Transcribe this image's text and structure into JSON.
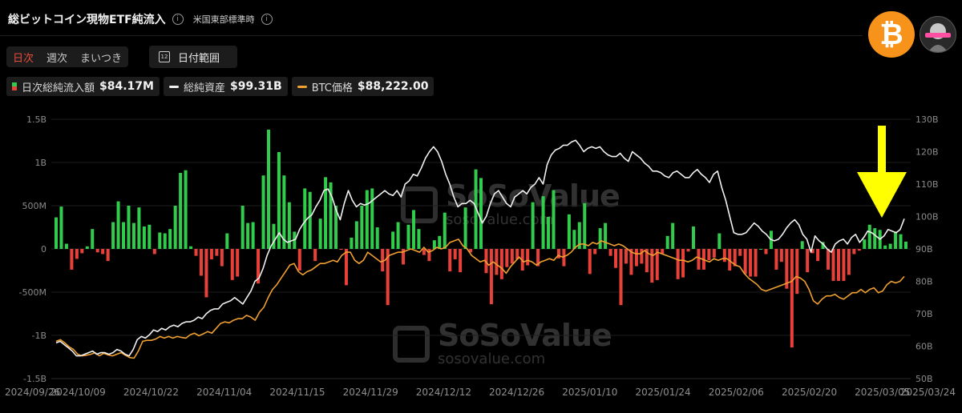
{
  "header": {
    "title": "総ビットコイン現物ETF純流入",
    "timezone": "米国東部標準時"
  },
  "period_tabs": [
    {
      "label": "日次",
      "active": true
    },
    {
      "label": "週次",
      "active": false
    },
    {
      "label": "まいつき",
      "active": false
    }
  ],
  "date_range": {
    "label": "日付範囲",
    "icon": "calendar-icon",
    "icon_day": "12"
  },
  "legend": [
    {
      "label": "日次総純流入額",
      "value": "$84.17M"
    },
    {
      "label": "総純資産",
      "value": "$99.31B"
    },
    {
      "label": "BTC価格",
      "value": "$88,222.00"
    }
  ],
  "watermark": {
    "brand": "SoSoValue",
    "site": "sosovalue.com"
  },
  "colors": {
    "inflow": "#32cc4c",
    "outflow": "#e8413a",
    "net_assets_line": "#f0f0f0",
    "btc_price_line": "#f0a030",
    "arrow": "#ffff00",
    "btc_logo": "#f7931a"
  },
  "chart_data": {
    "type": "bar",
    "left_axis": {
      "ticks": [
        "1.5B",
        "1B",
        "500M",
        "0",
        "-500M",
        "-1B",
        "-1.5B"
      ],
      "range": [
        -1500,
        1500
      ],
      "unit": "M USD"
    },
    "right_axis": {
      "ticks": [
        "130B",
        "120B",
        "110B",
        "100B",
        "90B",
        "80B",
        "70B",
        "60B",
        "50B"
      ],
      "range": [
        50,
        130
      ],
      "unit": "B USD"
    },
    "x_ticks": [
      "2024/09/26",
      "2024/10/09",
      "2024/10/22",
      "2024/11/04",
      "2024/11/15",
      "2024/11/29",
      "2024/12/12",
      "2024/12/26",
      "2025/01/10",
      "2025/01/24",
      "2025/02/06",
      "2025/02/20",
      "2025/03/05",
      "2025/03/24"
    ],
    "series": [
      {
        "name": "日次総純流入額",
        "kind": "bar",
        "values": [
          365,
          490,
          60,
          -240,
          -115,
          -50,
          30,
          230,
          -40,
          -60,
          -140,
          310,
          550,
          310,
          500,
          300,
          480,
          260,
          280,
          -60,
          190,
          180,
          230,
          500,
          880,
          910,
          30,
          -80,
          -310,
          -560,
          -120,
          -80,
          -200,
          180,
          -360,
          -320,
          500,
          300,
          310,
          -400,
          850,
          1380,
          290,
          1120,
          850,
          540,
          200,
          -250,
          700,
          660,
          -140,
          350,
          830,
          770,
          500,
          -10,
          -420,
          130,
          320,
          500,
          680,
          700,
          250,
          -260,
          -650,
          200,
          310,
          -180,
          280,
          450,
          230,
          -70,
          -140,
          100,
          150,
          420,
          -260,
          -120,
          -270,
          480,
          -40,
          920,
          820,
          -280,
          -640,
          -300,
          -350,
          -210,
          -170,
          -120,
          -250,
          -190,
          540,
          -200,
          610,
          370,
          680,
          -110,
          -200,
          400,
          220,
          310,
          530,
          -290,
          -60,
          240,
          300,
          -80,
          -220,
          -650,
          -170,
          -300,
          -200,
          -170,
          -270,
          -390,
          -360,
          -60,
          150,
          300,
          -350,
          -330,
          -30,
          260,
          -240,
          -240,
          -130,
          -100,
          180,
          -150,
          -250,
          -200,
          -80,
          -290,
          -320,
          -320,
          0,
          -60,
          210,
          -240,
          -150,
          -460,
          -1140,
          -520,
          90,
          -270,
          -50,
          -140,
          80,
          -240,
          -370,
          -370,
          -370,
          -300,
          -60,
          -20,
          110,
          280,
          240,
          220,
          40,
          60,
          200,
          170,
          84.17
        ]
      },
      {
        "name": "総純資産",
        "kind": "line",
        "axis": "right",
        "values": [
          61,
          61.5,
          60.5,
          59.5,
          58.5,
          57,
          57,
          57.5,
          58,
          58.5,
          57.5,
          58,
          58,
          57.5,
          58,
          59,
          58.5,
          57.5,
          57,
          59,
          62,
          63,
          62.5,
          63.5,
          65,
          64.5,
          65.5,
          65,
          66,
          66.5,
          66,
          67,
          67.5,
          67.5,
          68,
          69,
          68.5,
          70,
          71,
          71.5,
          71.5,
          73,
          73.5,
          74,
          75,
          74,
          73,
          75,
          77,
          80,
          81,
          84,
          88,
          91,
          93,
          95,
          93,
          92,
          92.5,
          93,
          96,
          98,
          99.5,
          100.5,
          103,
          105,
          108,
          108.5,
          106,
          102,
          99,
          104,
          108,
          105,
          103,
          104,
          103.5,
          104,
          105,
          106,
          107,
          108,
          107,
          106.5,
          108,
          106,
          110,
          111,
          113,
          112.5,
          115,
          118,
          120,
          121.5,
          120,
          117,
          113,
          110,
          106,
          103,
          104,
          104,
          105,
          104,
          101,
          98,
          100,
          104,
          107,
          108,
          106,
          104,
          103,
          106,
          107,
          108,
          107,
          109,
          110,
          112,
          110,
          116,
          119,
          120.5,
          121,
          122,
          122,
          123,
          123.5,
          122,
          120,
          121,
          121.5,
          121,
          121.5,
          120,
          119,
          118.5,
          118.5,
          119.5,
          118,
          117,
          120,
          119,
          118,
          116.5,
          115.5,
          114,
          114,
          113.5,
          112.5,
          112,
          113.5,
          114,
          113,
          112,
          112,
          113.5,
          114.5,
          113,
          112,
          110.5,
          113,
          114,
          109,
          105,
          100,
          95,
          94.5,
          94.5,
          95,
          96.5,
          98,
          97,
          95.5,
          94.5,
          93,
          92.5,
          93,
          94.5,
          96.5,
          98,
          99,
          97.5,
          94.5,
          93,
          89,
          94,
          92.5,
          91.5,
          90,
          89,
          91.5,
          92.5,
          93,
          91.5,
          93.5,
          94.5,
          92,
          93.5,
          95.5,
          95,
          94,
          93,
          94,
          96,
          95.5,
          95,
          96,
          99.31
        ]
      },
      {
        "name": "BTC価格",
        "kind": "line",
        "axis": "right",
        "values": [
          61.5,
          62,
          61,
          59.8,
          59,
          57.5,
          57,
          57.2,
          57.5,
          58,
          57,
          57.8,
          57.3,
          57,
          57.5,
          58,
          57.2,
          56.5,
          56.3,
          58.5,
          61.5,
          61.8,
          61.8,
          62.2,
          63,
          62.5,
          63,
          62.5,
          63,
          62.7,
          62.5,
          63.5,
          64,
          63.2,
          63.8,
          64.5,
          64,
          65.5,
          67,
          67.5,
          67.2,
          68,
          68.5,
          68.5,
          69.5,
          69,
          68,
          70.5,
          72,
          75,
          77.5,
          79,
          81,
          83,
          85,
          85.5,
          83,
          82,
          83,
          83.5,
          84.5,
          85.5,
          85.5,
          86,
          86.5,
          86,
          88,
          89,
          89,
          86.5,
          85.5,
          86.5,
          89,
          88,
          87,
          86,
          86.5,
          88,
          88.5,
          89,
          89,
          89.5,
          90,
          89.5,
          89,
          90.5,
          89,
          89.5,
          90.5,
          90,
          90.5,
          92,
          92.5,
          93,
          91,
          90,
          88,
          87,
          86,
          86.5,
          85,
          86,
          85,
          84,
          82.5,
          84.5,
          86,
          87.5,
          86,
          86.5,
          86,
          85,
          86,
          86.5,
          87,
          86.5,
          88,
          87.5,
          88,
          89,
          90.5,
          91.5,
          91.5,
          91,
          92,
          91.5,
          92.5,
          92,
          91.5,
          91,
          91.5,
          91,
          90,
          89,
          88.5,
          88.5,
          89.5,
          88.5,
          88,
          89,
          88.5,
          88,
          87.5,
          87,
          86.5,
          86.5,
          86,
          86.5,
          87.5,
          87,
          86.5,
          86,
          87,
          86.5,
          87,
          87,
          86,
          85,
          84.5,
          82.5,
          81,
          80,
          79,
          77.5,
          77,
          77.5,
          78,
          78.5,
          79,
          79.5,
          80,
          81.5,
          81,
          80,
          77.5,
          74,
          73,
          74.5,
          75.5,
          75.5,
          76,
          75,
          74.5,
          75.5,
          76.5,
          76.5,
          77.5,
          76.5,
          77.5,
          78,
          76.5,
          77,
          79,
          80,
          79.5,
          80,
          81.5
        ]
      }
    ],
    "annotations": [
      {
        "type": "arrow",
        "direction": "down",
        "color": "#ffff00",
        "points_to": "2025/03/19"
      }
    ],
    "grid": true,
    "legend_position": "top-left"
  }
}
